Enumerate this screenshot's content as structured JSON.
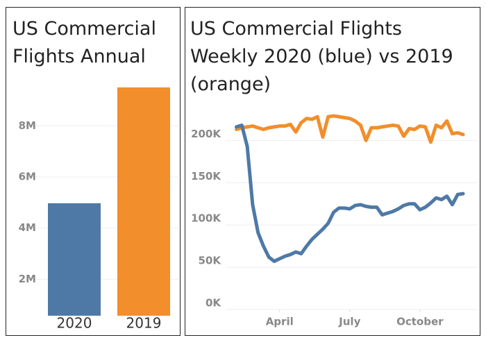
{
  "chart_data": [
    {
      "type": "bar",
      "title": "US Commercial Flights Annual",
      "categories": [
        "2020",
        "2019"
      ],
      "values": [
        4970000,
        9500000
      ],
      "colors": [
        "#4e79a7",
        "#f28e2b"
      ],
      "ylim": [
        570000,
        9880000
      ],
      "yticks": [
        {
          "value": 2000000,
          "label": "2M"
        },
        {
          "value": 4000000,
          "label": "4M"
        },
        {
          "value": 6000000,
          "label": "6M"
        },
        {
          "value": 8000000,
          "label": "8M"
        }
      ],
      "grid": true
    },
    {
      "type": "line",
      "title": "US Commercial Flights Weekly 2020 (blue) vs 2019 (orange)",
      "x": [
        6,
        7,
        8,
        9,
        10,
        11,
        12,
        13,
        14,
        15,
        16,
        17,
        18,
        19,
        20,
        21,
        22,
        23,
        24,
        25,
        26,
        27,
        28,
        29,
        30,
        31,
        32,
        33,
        34,
        35,
        36,
        37,
        38,
        39,
        40,
        41,
        42,
        43,
        44,
        45,
        46,
        47,
        48
      ],
      "series": [
        {
          "color": "#f28e2b",
          "values": [
            213000,
            215000,
            216000,
            217000,
            215000,
            213000,
            215000,
            216000,
            217000,
            217000,
            219000,
            210000,
            221000,
            226000,
            225000,
            228000,
            204000,
            228000,
            229000,
            228000,
            227000,
            226000,
            223000,
            218000,
            200000,
            215000,
            215000,
            216000,
            217000,
            218000,
            217000,
            205000,
            214000,
            213000,
            217000,
            216000,
            198000,
            218000,
            215000,
            223000,
            208000,
            209000,
            207000
          ]
        },
        {
          "color": "#4e79a7",
          "values": [
            216000,
            218000,
            193000,
            124000,
            91000,
            75000,
            62000,
            57000,
            60000,
            63000,
            65000,
            68000,
            66000,
            75000,
            83000,
            89000,
            95000,
            102000,
            115000,
            120000,
            120000,
            119000,
            123000,
            124000,
            122000,
            121000,
            121000,
            112000,
            114000,
            116000,
            119000,
            123000,
            125000,
            125000,
            118000,
            121000,
            126000,
            132000,
            130000,
            134000,
            124000,
            136000,
            137000
          ]
        }
      ],
      "xlim": [
        4,
        50.7
      ],
      "ylim": [
        0,
        243000
      ],
      "xticks": [
        {
          "value": 14,
          "label": "April"
        },
        {
          "value": 27,
          "label": "July"
        },
        {
          "value": 40,
          "label": "October"
        }
      ],
      "yticks": [
        {
          "value": 0,
          "label": "0K"
        },
        {
          "value": 50000,
          "label": "50K"
        },
        {
          "value": 100000,
          "label": "100K"
        },
        {
          "value": 150000,
          "label": "150K"
        },
        {
          "value": 200000,
          "label": "200K"
        }
      ],
      "grid": true
    }
  ]
}
